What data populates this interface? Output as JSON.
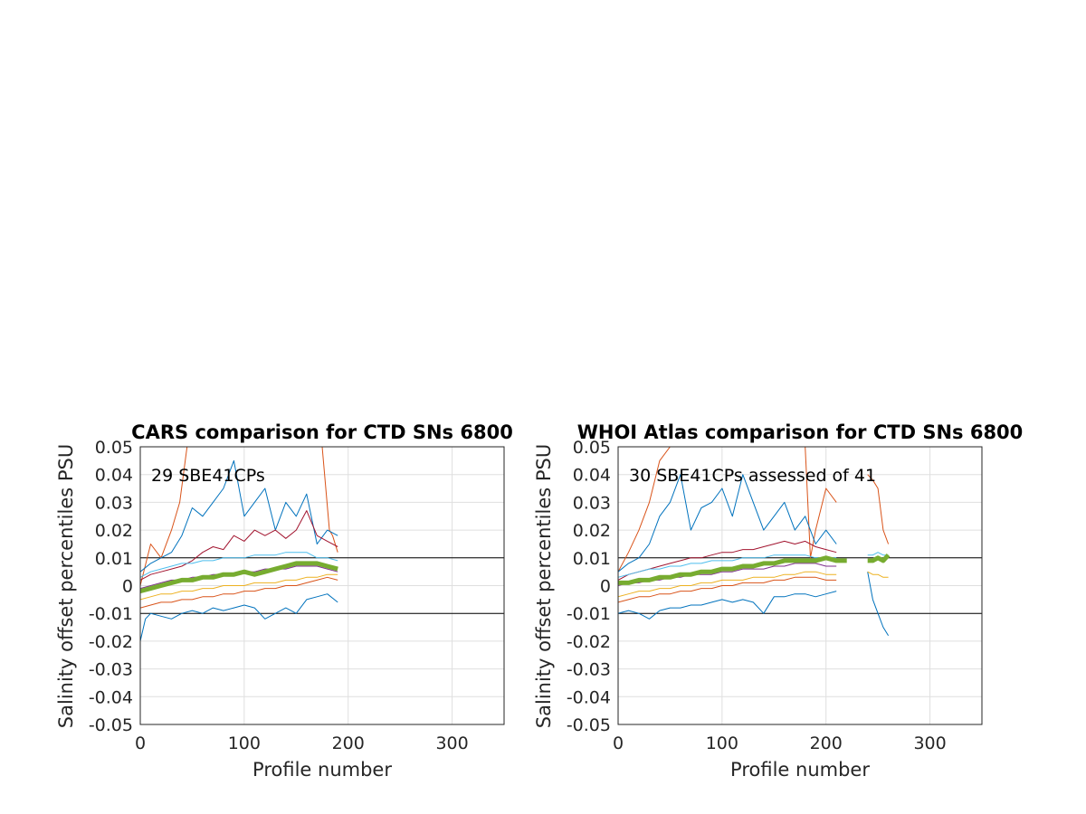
{
  "chart_data": [
    {
      "type": "line",
      "title": "CARS comparison for CTD SNs 6800",
      "xlabel": "Profile number",
      "ylabel": "Salinity offset percentiles PSU",
      "xlim": [
        0,
        350
      ],
      "ylim": [
        -0.05,
        0.05
      ],
      "xticks": [
        0,
        100,
        200,
        300
      ],
      "yticks": [
        -0.05,
        -0.04,
        -0.03,
        -0.02,
        -0.01,
        0,
        0.01,
        0.02,
        0.03,
        0.04,
        0.05
      ],
      "ytick_labels": [
        "-0.05",
        "-0.04",
        "-0.03",
        "-0.02",
        "-0.01",
        "0",
        "0.01",
        "0.02",
        "0.03",
        "0.04",
        "0.05"
      ],
      "grid": true,
      "reference_lines": [
        0.01,
        -0.01
      ],
      "annotation": "29 SBE41CPs",
      "series": [
        {
          "color": "#d95319",
          "x": [
            0,
            10,
            20,
            30,
            38,
            45,
            55,
            65,
            75,
            85,
            100,
            115,
            125,
            135,
            150,
            160,
            175,
            182,
            185,
            190
          ],
          "y": [
            0.0,
            0.015,
            0.01,
            0.02,
            0.03,
            0.05,
            0.05,
            0.05,
            0.05,
            0.05,
            0.05,
            0.05,
            0.05,
            0.05,
            0.05,
            0.05,
            0.05,
            0.02,
            0.018,
            0.012
          ]
        },
        {
          "color": "#0072bd",
          "x": [
            0,
            10,
            20,
            30,
            40,
            50,
            60,
            70,
            80,
            90,
            100,
            110,
            120,
            130,
            140,
            150,
            160,
            170,
            180,
            190
          ],
          "y": [
            0.005,
            0.008,
            0.01,
            0.012,
            0.018,
            0.028,
            0.025,
            0.03,
            0.035,
            0.045,
            0.025,
            0.03,
            0.035,
            0.02,
            0.03,
            0.025,
            0.033,
            0.015,
            0.02,
            0.018
          ]
        },
        {
          "color": "#a2142f",
          "x": [
            0,
            10,
            20,
            30,
            40,
            50,
            60,
            70,
            80,
            90,
            100,
            110,
            120,
            130,
            140,
            150,
            160,
            170,
            180,
            190
          ],
          "y": [
            0.002,
            0.004,
            0.005,
            0.006,
            0.007,
            0.009,
            0.012,
            0.014,
            0.013,
            0.018,
            0.016,
            0.02,
            0.018,
            0.02,
            0.017,
            0.02,
            0.027,
            0.018,
            0.016,
            0.014
          ]
        },
        {
          "color": "#4dbeee",
          "x": [
            0,
            10,
            20,
            30,
            40,
            50,
            60,
            70,
            80,
            90,
            100,
            110,
            120,
            130,
            140,
            150,
            160,
            170,
            180,
            190
          ],
          "y": [
            0.003,
            0.005,
            0.006,
            0.007,
            0.008,
            0.008,
            0.009,
            0.009,
            0.01,
            0.01,
            0.01,
            0.011,
            0.011,
            0.011,
            0.012,
            0.012,
            0.012,
            0.01,
            0.01,
            0.009
          ]
        },
        {
          "color": "#7e2f8e",
          "x": [
            0,
            10,
            20,
            30,
            40,
            50,
            60,
            70,
            80,
            90,
            100,
            110,
            120,
            130,
            140,
            150,
            160,
            170,
            180,
            190
          ],
          "y": [
            -0.001,
            0.0,
            0.001,
            0.002,
            0.002,
            0.003,
            0.003,
            0.004,
            0.004,
            0.004,
            0.005,
            0.005,
            0.006,
            0.006,
            0.006,
            0.007,
            0.007,
            0.007,
            0.006,
            0.005
          ]
        },
        {
          "color": "#edb120",
          "x": [
            0,
            10,
            20,
            30,
            40,
            50,
            60,
            70,
            80,
            90,
            100,
            110,
            120,
            130,
            140,
            150,
            160,
            170,
            180,
            190
          ],
          "y": [
            -0.005,
            -0.004,
            -0.003,
            -0.003,
            -0.002,
            -0.002,
            -0.001,
            -0.001,
            0.0,
            0.0,
            0.0,
            0.001,
            0.001,
            0.001,
            0.002,
            0.002,
            0.003,
            0.003,
            0.004,
            0.004
          ]
        },
        {
          "color": "#d95319",
          "x": [
            0,
            10,
            20,
            30,
            40,
            50,
            60,
            70,
            80,
            90,
            100,
            110,
            120,
            130,
            140,
            150,
            160,
            170,
            180,
            190
          ],
          "y": [
            -0.008,
            -0.007,
            -0.006,
            -0.006,
            -0.005,
            -0.005,
            -0.004,
            -0.004,
            -0.003,
            -0.003,
            -0.002,
            -0.002,
            -0.001,
            -0.001,
            0.0,
            0.0,
            0.001,
            0.002,
            0.003,
            0.002
          ]
        },
        {
          "color": "#0072bd",
          "x": [
            0,
            5,
            10,
            20,
            30,
            40,
            50,
            60,
            70,
            80,
            90,
            100,
            110,
            120,
            130,
            140,
            150,
            160,
            170,
            180,
            190
          ],
          "y": [
            -0.02,
            -0.012,
            -0.01,
            -0.011,
            -0.012,
            -0.01,
            -0.009,
            -0.01,
            -0.008,
            -0.009,
            -0.008,
            -0.007,
            -0.008,
            -0.012,
            -0.01,
            -0.008,
            -0.01,
            -0.005,
            -0.004,
            -0.003,
            -0.006
          ]
        },
        {
          "color": "#77ac30",
          "thick": true,
          "x": [
            0,
            10,
            20,
            30,
            40,
            50,
            60,
            70,
            80,
            90,
            100,
            110,
            120,
            130,
            140,
            150,
            160,
            170,
            180,
            190
          ],
          "y": [
            -0.002,
            -0.001,
            0.0,
            0.001,
            0.002,
            0.002,
            0.003,
            0.003,
            0.004,
            0.004,
            0.005,
            0.004,
            0.005,
            0.006,
            0.007,
            0.008,
            0.008,
            0.008,
            0.007,
            0.006
          ]
        }
      ]
    },
    {
      "type": "line",
      "title": "WHOI Atlas comparison for CTD SNs 6800",
      "xlabel": "Profile number",
      "ylabel": "Salinity offset percentiles PSU",
      "xlim": [
        0,
        350
      ],
      "ylim": [
        -0.05,
        0.05
      ],
      "xticks": [
        0,
        100,
        200,
        300
      ],
      "yticks": [
        -0.05,
        -0.04,
        -0.03,
        -0.02,
        -0.01,
        0,
        0.01,
        0.02,
        0.03,
        0.04,
        0.05
      ],
      "ytick_labels": [
        "-0.05",
        "-0.04",
        "-0.03",
        "-0.02",
        "-0.01",
        "0",
        "0.01",
        "0.02",
        "0.03",
        "0.04",
        "0.05"
      ],
      "grid": true,
      "reference_lines": [
        0.01,
        -0.01
      ],
      "annotation": "30 SBE41CPs assessed of 41",
      "series": [
        {
          "color": "#d95319",
          "x": [
            0,
            10,
            20,
            30,
            40,
            50,
            60,
            70,
            80,
            90,
            100,
            110,
            120,
            130,
            140,
            150,
            160,
            170,
            180,
            185,
            190,
            200,
            210
          ],
          "y": [
            0.005,
            0.012,
            0.02,
            0.03,
            0.045,
            0.05,
            0.05,
            0.05,
            0.05,
            0.05,
            0.05,
            0.05,
            0.05,
            0.05,
            0.05,
            0.05,
            0.05,
            0.05,
            0.05,
            0.01,
            0.02,
            0.035,
            0.03
          ]
        },
        {
          "color": "#0072bd",
          "x": [
            0,
            10,
            20,
            30,
            40,
            50,
            60,
            70,
            80,
            90,
            100,
            110,
            120,
            130,
            140,
            150,
            160,
            170,
            180,
            190,
            200,
            210
          ],
          "y": [
            0.005,
            0.008,
            0.01,
            0.015,
            0.025,
            0.03,
            0.04,
            0.02,
            0.028,
            0.03,
            0.035,
            0.025,
            0.04,
            0.03,
            0.02,
            0.025,
            0.03,
            0.02,
            0.025,
            0.015,
            0.02,
            0.015
          ]
        },
        {
          "color": "#a2142f",
          "x": [
            0,
            10,
            20,
            30,
            40,
            50,
            60,
            70,
            80,
            90,
            100,
            110,
            120,
            130,
            140,
            150,
            160,
            170,
            180,
            190,
            200,
            210
          ],
          "y": [
            0.002,
            0.004,
            0.005,
            0.006,
            0.007,
            0.008,
            0.009,
            0.01,
            0.01,
            0.011,
            0.012,
            0.012,
            0.013,
            0.013,
            0.014,
            0.015,
            0.016,
            0.015,
            0.016,
            0.014,
            0.013,
            0.012
          ]
        },
        {
          "color": "#4dbeee",
          "x": [
            0,
            10,
            20,
            30,
            40,
            50,
            60,
            70,
            80,
            90,
            100,
            110,
            120,
            130,
            140,
            150,
            160,
            170,
            180,
            190,
            200,
            210
          ],
          "y": [
            0.003,
            0.004,
            0.005,
            0.006,
            0.006,
            0.007,
            0.007,
            0.008,
            0.008,
            0.009,
            0.009,
            0.009,
            0.01,
            0.01,
            0.01,
            0.011,
            0.011,
            0.011,
            0.011,
            0.01,
            0.01,
            0.01
          ]
        },
        {
          "color": "#7e2f8e",
          "x": [
            0,
            10,
            20,
            30,
            40,
            50,
            60,
            70,
            80,
            90,
            100,
            110,
            120,
            130,
            140,
            150,
            160,
            170,
            180,
            190,
            200,
            210
          ],
          "y": [
            0.0,
            0.001,
            0.001,
            0.002,
            0.002,
            0.003,
            0.003,
            0.004,
            0.004,
            0.004,
            0.005,
            0.005,
            0.006,
            0.006,
            0.006,
            0.007,
            0.007,
            0.008,
            0.008,
            0.008,
            0.007,
            0.007
          ]
        },
        {
          "color": "#edb120",
          "x": [
            0,
            10,
            20,
            30,
            40,
            50,
            60,
            70,
            80,
            90,
            100,
            110,
            120,
            130,
            140,
            150,
            160,
            170,
            180,
            190,
            200,
            210
          ],
          "y": [
            -0.004,
            -0.003,
            -0.002,
            -0.002,
            -0.001,
            -0.001,
            0.0,
            0.0,
            0.001,
            0.001,
            0.002,
            0.002,
            0.002,
            0.003,
            0.003,
            0.003,
            0.004,
            0.004,
            0.005,
            0.005,
            0.004,
            0.004
          ]
        },
        {
          "color": "#d95319",
          "x": [
            0,
            10,
            20,
            30,
            40,
            50,
            60,
            70,
            80,
            90,
            100,
            110,
            120,
            130,
            140,
            150,
            160,
            170,
            180,
            190,
            200,
            210
          ],
          "y": [
            -0.006,
            -0.005,
            -0.004,
            -0.004,
            -0.003,
            -0.003,
            -0.002,
            -0.002,
            -0.001,
            -0.001,
            0.0,
            0.0,
            0.001,
            0.001,
            0.001,
            0.002,
            0.002,
            0.003,
            0.003,
            0.003,
            0.002,
            0.002
          ]
        },
        {
          "color": "#0072bd",
          "x": [
            0,
            10,
            20,
            30,
            40,
            50,
            60,
            70,
            80,
            90,
            100,
            110,
            120,
            130,
            140,
            150,
            160,
            170,
            180,
            190,
            200,
            210
          ],
          "y": [
            -0.01,
            -0.009,
            -0.01,
            -0.012,
            -0.009,
            -0.008,
            -0.008,
            -0.007,
            -0.007,
            -0.006,
            -0.005,
            -0.006,
            -0.005,
            -0.006,
            -0.01,
            -0.004,
            -0.004,
            -0.003,
            -0.003,
            -0.004,
            -0.003,
            -0.002
          ]
        },
        {
          "color": "#77ac30",
          "thick": true,
          "x": [
            0,
            10,
            20,
            30,
            40,
            50,
            60,
            70,
            80,
            90,
            100,
            110,
            120,
            130,
            140,
            150,
            160,
            170,
            180,
            190,
            200,
            210,
            220
          ],
          "y": [
            0.001,
            0.001,
            0.002,
            0.002,
            0.003,
            0.003,
            0.004,
            0.004,
            0.005,
            0.005,
            0.006,
            0.006,
            0.007,
            0.007,
            0.008,
            0.008,
            0.009,
            0.009,
            0.009,
            0.009,
            0.01,
            0.009,
            0.009
          ]
        },
        {
          "color": "#d95319",
          "x": [
            240,
            245,
            250,
            255,
            260
          ],
          "y": [
            0.04,
            0.038,
            0.035,
            0.02,
            0.015
          ]
        },
        {
          "color": "#0072bd",
          "x": [
            240,
            245,
            250,
            255,
            260
          ],
          "y": [
            0.005,
            -0.005,
            -0.01,
            -0.015,
            -0.018
          ]
        },
        {
          "color": "#4dbeee",
          "x": [
            240,
            245,
            250,
            255,
            260
          ],
          "y": [
            0.011,
            0.011,
            0.012,
            0.011,
            0.011
          ]
        },
        {
          "color": "#edb120",
          "x": [
            240,
            245,
            250,
            255,
            260
          ],
          "y": [
            0.005,
            0.004,
            0.004,
            0.003,
            0.003
          ]
        },
        {
          "color": "#77ac30",
          "thick": true,
          "x": [
            240,
            245,
            250,
            255,
            260
          ],
          "y": [
            0.009,
            0.009,
            0.01,
            0.009,
            0.011
          ]
        }
      ]
    }
  ]
}
